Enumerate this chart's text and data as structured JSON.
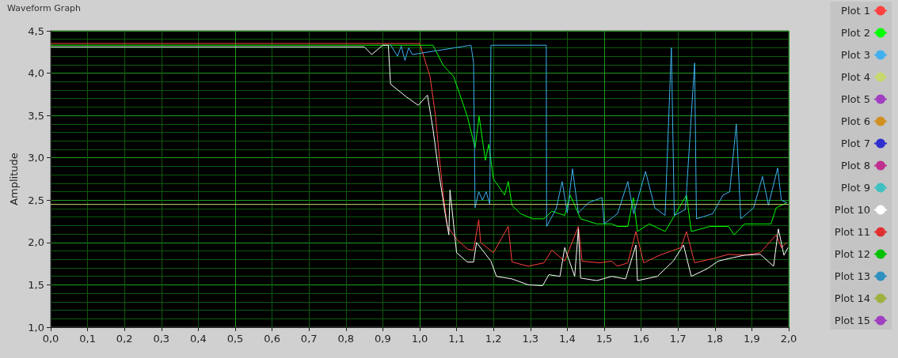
{
  "chart_data": {
    "type": "line",
    "title": "Waveform Graph",
    "ylabel": "Amplitude",
    "xlim": [
      0,
      2
    ],
    "ylim": [
      1,
      4.5
    ],
    "xticks": [
      {
        "value": 0,
        "label": "0,0"
      },
      {
        "value": 0.1,
        "label": "0,1"
      },
      {
        "value": 0.2,
        "label": "0,2"
      },
      {
        "value": 0.3,
        "label": "0,3"
      },
      {
        "value": 0.4,
        "label": "0,4"
      },
      {
        "value": 0.5,
        "label": "0,5"
      },
      {
        "value": 0.6,
        "label": "0,6"
      },
      {
        "value": 0.7,
        "label": "0,7"
      },
      {
        "value": 0.8,
        "label": "0,8"
      },
      {
        "value": 0.9,
        "label": "0,9"
      },
      {
        "value": 1,
        "label": "1,0"
      },
      {
        "value": 1.1,
        "label": "1,1"
      },
      {
        "value": 1.2,
        "label": "1,2"
      },
      {
        "value": 1.3,
        "label": "1,3"
      },
      {
        "value": 1.4,
        "label": "1,4"
      },
      {
        "value": 1.5,
        "label": "1,5"
      },
      {
        "value": 1.6,
        "label": "1,6"
      },
      {
        "value": 1.7,
        "label": "1,7"
      },
      {
        "value": 1.8,
        "label": "1,8"
      },
      {
        "value": 1.9,
        "label": "1,9"
      },
      {
        "value": 2,
        "label": "2,0"
      }
    ],
    "yticks": [
      {
        "value": 1,
        "label": "1,0"
      },
      {
        "value": 1.5,
        "label": "1,5"
      },
      {
        "value": 2,
        "label": "2,0"
      },
      {
        "value": 2.5,
        "label": "2,5"
      },
      {
        "value": 3,
        "label": "3,0"
      },
      {
        "value": 3.5,
        "label": "3,5"
      },
      {
        "value": 4,
        "label": "4,0"
      },
      {
        "value": 4.5,
        "label": "4,5"
      }
    ],
    "grid": true,
    "legend": "right",
    "line_style": "solid",
    "marker": "none",
    "series": [
      {
        "name": "Plot 1",
        "color": "#ff4040",
        "x": [
          0,
          0.3,
          0.6,
          0.9,
          1.0,
          1.028,
          1.043,
          1.054,
          1.064,
          1.075,
          1.1,
          1.13,
          1.146,
          1.16,
          1.165,
          1.2,
          1.24,
          1.25,
          1.294,
          1.337,
          1.358,
          1.393,
          1.43,
          1.44,
          1.487,
          1.52,
          1.536,
          1.564,
          1.586,
          1.607,
          1.65,
          1.708,
          1.723,
          1.745,
          1.794,
          1.837,
          1.88,
          1.923,
          1.966,
          1.98,
          1.995
        ],
        "values": [
          4.35,
          4.35,
          4.35,
          4.35,
          4.35,
          3.96,
          3.49,
          2.97,
          2.56,
          2.19,
          2.04,
          1.92,
          1.91,
          2.27,
          2.0,
          1.88,
          2.19,
          1.77,
          1.72,
          1.76,
          1.91,
          1.78,
          2.19,
          1.78,
          1.76,
          1.78,
          1.72,
          1.76,
          2.13,
          1.76,
          1.85,
          1.94,
          2.13,
          1.76,
          1.81,
          1.86,
          1.85,
          1.88,
          2.09,
          1.94,
          2.0
        ]
      },
      {
        "name": "Plot 2",
        "color": "#00ff00",
        "x": [
          0,
          0.5,
          1.036,
          1.064,
          1.092,
          1.107,
          1.129,
          1.15,
          1.161,
          1.178,
          1.187,
          1.2,
          1.23,
          1.24,
          1.25,
          1.273,
          1.307,
          1.337,
          1.358,
          1.393,
          1.408,
          1.436,
          1.48,
          1.52,
          1.536,
          1.564,
          1.579,
          1.59,
          1.622,
          1.665,
          1.723,
          1.736,
          1.787,
          1.837,
          1.852,
          1.88,
          1.923,
          1.952,
          1.966,
          1.995
        ],
        "values": [
          4.33,
          4.33,
          4.33,
          4.09,
          3.96,
          3.77,
          3.49,
          3.12,
          3.49,
          2.97,
          3.16,
          2.75,
          2.56,
          2.72,
          2.44,
          2.34,
          2.28,
          2.28,
          2.37,
          2.32,
          2.56,
          2.28,
          2.22,
          2.22,
          2.19,
          2.19,
          2.53,
          2.13,
          2.22,
          2.13,
          2.56,
          2.13,
          2.19,
          2.19,
          2.09,
          2.22,
          2.22,
          2.22,
          2.41,
          2.47
        ]
      },
      {
        "name": "Plot 3",
        "color": "#40b0f0",
        "x": [
          0.92,
          0.94,
          0.95,
          0.96,
          0.97,
          0.98,
          1.139,
          1.146,
          1.15,
          1.16,
          1.17,
          1.18,
          1.19,
          1.193,
          1.343,
          1.344,
          1.37,
          1.386,
          1.4,
          1.414,
          1.43,
          1.457,
          1.494,
          1.5,
          1.536,
          1.564,
          1.58,
          1.612,
          1.637,
          1.665,
          1.682,
          1.69,
          1.72,
          1.745,
          1.75,
          1.794,
          1.822,
          1.84,
          1.858,
          1.87,
          1.905,
          1.929,
          1.945,
          1.97,
          1.98,
          1.995
        ],
        "values": [
          4.34,
          4.2,
          4.32,
          4.15,
          4.3,
          4.22,
          4.33,
          4.12,
          2.41,
          2.6,
          2.5,
          2.6,
          2.45,
          4.33,
          4.33,
          2.19,
          2.4,
          2.72,
          2.35,
          2.87,
          2.35,
          2.47,
          2.53,
          2.22,
          2.34,
          2.72,
          2.34,
          2.84,
          2.41,
          2.32,
          4.3,
          2.32,
          2.39,
          4.12,
          2.28,
          2.34,
          2.56,
          2.6,
          3.4,
          2.28,
          2.41,
          2.78,
          2.44,
          2.88,
          2.5,
          2.47
        ]
      },
      {
        "name": "Plot 4",
        "color": "#c8d870",
        "x": [
          0,
          2
        ],
        "values": [
          2.45,
          2.45
        ]
      },
      {
        "name": "Plot 5",
        "color": "#a040c0"
      },
      {
        "name": "Plot 6",
        "color": "#d09020"
      },
      {
        "name": "Plot 7",
        "color": "#3030d0"
      },
      {
        "name": "Plot 8",
        "color": "#c03090"
      },
      {
        "name": "Plot 9",
        "color": "#40c0c0"
      },
      {
        "name": "Plot 10",
        "color": "#ffffff",
        "x": [
          0,
          0.3,
          0.6,
          0.85,
          0.87,
          0.9,
          0.915,
          0.921,
          0.964,
          0.996,
          1.021,
          1.036,
          1.05,
          1.069,
          1.079,
          1.082,
          1.1,
          1.129,
          1.146,
          1.154,
          1.193,
          1.208,
          1.25,
          1.294,
          1.333,
          1.35,
          1.38,
          1.393,
          1.42,
          1.43,
          1.436,
          1.48,
          1.52,
          1.558,
          1.586,
          1.59,
          1.644,
          1.687,
          1.715,
          1.736,
          1.779,
          1.809,
          1.837,
          1.88,
          1.923,
          1.959,
          1.972,
          1.987,
          1.998
        ],
        "values": [
          4.31,
          4.31,
          4.31,
          4.31,
          4.22,
          4.33,
          4.33,
          3.87,
          3.72,
          3.62,
          3.74,
          3.34,
          2.88,
          2.34,
          2.09,
          2.62,
          1.88,
          1.77,
          1.77,
          2.0,
          1.78,
          1.6,
          1.57,
          1.5,
          1.49,
          1.62,
          1.6,
          1.94,
          1.6,
          2.16,
          1.58,
          1.55,
          1.6,
          1.57,
          1.97,
          1.55,
          1.6,
          1.78,
          1.97,
          1.6,
          1.69,
          1.78,
          1.81,
          1.85,
          1.86,
          1.72,
          2.16,
          1.85,
          1.94
        ]
      },
      {
        "name": "Plot 11",
        "color": "#e03030"
      },
      {
        "name": "Plot 12",
        "color": "#00c000"
      },
      {
        "name": "Plot 13",
        "color": "#3090c0"
      },
      {
        "name": "Plot 14",
        "color": "#a0b040"
      },
      {
        "name": "Plot 15",
        "color": "#a040c0"
      }
    ]
  }
}
